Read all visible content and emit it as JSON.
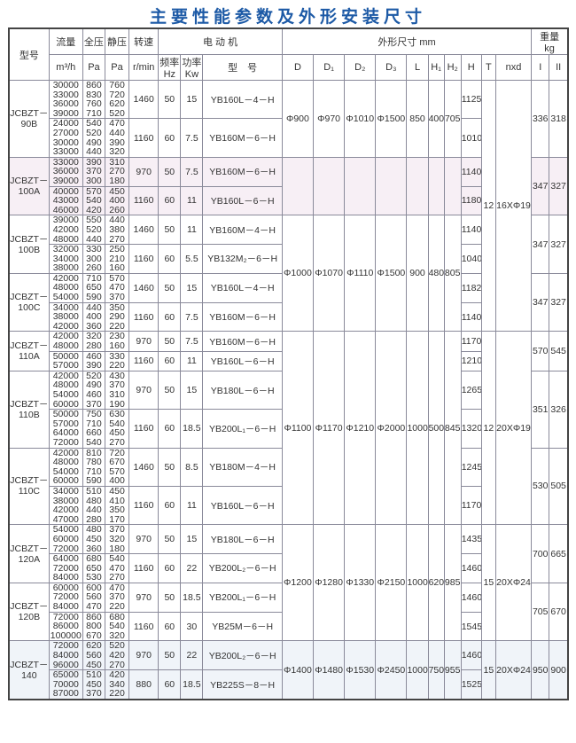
{
  "title": "主要性能参数及外形安装尺寸",
  "header": {
    "model": "型号",
    "flow": "流量",
    "flow_unit": "m³/h",
    "total_pressure": "全压",
    "total_pressure_unit": "Pa",
    "static_pressure": "静压",
    "static_pressure_unit": "Pa",
    "speed": "转速",
    "speed_unit": "r/min",
    "motor": "电 动 机",
    "freq": "频率",
    "freq_unit": "Hz",
    "power": "功率",
    "power_unit": "Kw",
    "motor_model": "型　号",
    "dims": "外形尺寸 mm",
    "dim_cols": [
      "D",
      "D₁",
      "D₂",
      "D₃",
      "L",
      "H₁",
      "H₂",
      "H",
      "T",
      "nxd"
    ],
    "weight": "重量",
    "weight_unit": "kg",
    "weight_cols": [
      "I",
      "II"
    ]
  },
  "models": [
    {
      "name": "JCBZT－90B",
      "weight": [
        "336",
        "318"
      ],
      "subs": [
        {
          "rows": [
            [
              "30000",
              "860",
              "760"
            ],
            [
              "33000",
              "830",
              "720"
            ],
            [
              "36000",
              "760",
              "620"
            ],
            [
              "39000",
              "710",
              "520"
            ]
          ],
          "rpm": "1460",
          "hz": "50",
          "kw": "15",
          "motor": "YB160L－4－H",
          "H": "1125"
        },
        {
          "rows": [
            [
              "24000",
              "540",
              "470"
            ],
            [
              "27000",
              "520",
              "440"
            ],
            [
              "30000",
              "490",
              "390"
            ],
            [
              "33000",
              "440",
              "320"
            ]
          ],
          "rpm": "1160",
          "hz": "60",
          "kw": "7.5",
          "motor": "YB160M－6－H",
          "H": "1010"
        }
      ]
    },
    {
      "name": "JCBZT－100A",
      "weight": [
        "347",
        "327"
      ],
      "subs": [
        {
          "rows": [
            [
              "33000",
              "390",
              "310"
            ],
            [
              "36000",
              "370",
              "270"
            ],
            [
              "39000",
              "300",
              "180"
            ]
          ],
          "rpm": "970",
          "hz": "50",
          "kw": "7.5",
          "motor": "YB160M－6－H",
          "H": "1140"
        },
        {
          "rows": [
            [
              "40000",
              "570",
              "450"
            ],
            [
              "43000",
              "540",
              "400"
            ],
            [
              "46000",
              "420",
              "260"
            ]
          ],
          "rpm": "1160",
          "hz": "60",
          "kw": "11",
          "motor": "YB160L－6－H",
          "H": "1180"
        }
      ]
    },
    {
      "name": "JCBZT－100B",
      "weight": [
        "347",
        "327"
      ],
      "subs": [
        {
          "rows": [
            [
              "39000",
              "550",
              "440"
            ],
            [
              "42000",
              "520",
              "380"
            ],
            [
              "48000",
              "440",
              "270"
            ]
          ],
          "rpm": "1460",
          "hz": "50",
          "kw": "11",
          "motor": "YB160M－4－H",
          "H": "1140"
        },
        {
          "rows": [
            [
              "32000",
              "330",
              "250"
            ],
            [
              "34000",
              "300",
              "210"
            ],
            [
              "38000",
              "260",
              "160"
            ]
          ],
          "rpm": "1160",
          "hz": "60",
          "kw": "5.5",
          "motor": "YB132M₂－6－H",
          "H": "1040"
        }
      ]
    },
    {
      "name": "JCBZT－100C",
      "weight": [
        "347",
        "327"
      ],
      "subs": [
        {
          "rows": [
            [
              "42000",
              "710",
              "570"
            ],
            [
              "48000",
              "650",
              "470"
            ],
            [
              "54000",
              "590",
              "370"
            ]
          ],
          "rpm": "1460",
          "hz": "50",
          "kw": "15",
          "motor": "YB160L－4－H",
          "H": "1182"
        },
        {
          "rows": [
            [
              "34000",
              "440",
              "350"
            ],
            [
              "38000",
              "400",
              "290"
            ],
            [
              "42000",
              "360",
              "220"
            ]
          ],
          "rpm": "1160",
          "hz": "60",
          "kw": "7.5",
          "motor": "YB160M－6－H",
          "H": "1140"
        }
      ]
    },
    {
      "name": "JCBZT－110A",
      "weight": [
        "570",
        "545"
      ],
      "subs": [
        {
          "rows": [
            [
              "42000",
              "320",
              "230"
            ],
            [
              "48000",
              "280",
              "160"
            ]
          ],
          "rpm": "970",
          "hz": "50",
          "kw": "7.5",
          "motor": "YB160M－6－H",
          "H": "1170"
        },
        {
          "rows": [
            [
              "50000",
              "460",
              "330"
            ],
            [
              "57000",
              "390",
              "220"
            ]
          ],
          "rpm": "1160",
          "hz": "60",
          "kw": "11",
          "motor": "YB160L－6－H",
          "H": "1210"
        }
      ]
    },
    {
      "name": "JCBZT－110B",
      "weight": [
        "351",
        "326"
      ],
      "subs": [
        {
          "rows": [
            [
              "42000",
              "520",
              "430"
            ],
            [
              "48000",
              "490",
              "370"
            ],
            [
              "54000",
              "460",
              "310"
            ],
            [
              "60000",
              "370",
              "190"
            ]
          ],
          "rpm": "970",
          "hz": "50",
          "kw": "15",
          "motor": "YB180L－6－H",
          "H": "1265"
        },
        {
          "rows": [
            [
              "50000",
              "750",
              "630"
            ],
            [
              "57000",
              "710",
              "540"
            ],
            [
              "64000",
              "660",
              "450"
            ],
            [
              "72000",
              "540",
              "270"
            ]
          ],
          "rpm": "1160",
          "hz": "60",
          "kw": "18.5",
          "motor": "YB200L₁－6－H",
          "H": "1320"
        }
      ]
    },
    {
      "name": "JCBZT－110C",
      "weight": [
        "530",
        "505"
      ],
      "subs": [
        {
          "rows": [
            [
              "42000",
              "810",
              "720"
            ],
            [
              "48000",
              "780",
              "670"
            ],
            [
              "54000",
              "710",
              "570"
            ],
            [
              "60000",
              "590",
              "400"
            ]
          ],
          "rpm": "1460",
          "hz": "50",
          "kw": "8.5",
          "motor": "YB180M－4－H",
          "H": "1245"
        },
        {
          "rows": [
            [
              "34000",
              "510",
              "450"
            ],
            [
              "38000",
              "480",
              "410"
            ],
            [
              "42000",
              "440",
              "350"
            ],
            [
              "47000",
              "280",
              "170"
            ]
          ],
          "rpm": "1160",
          "hz": "60",
          "kw": "11",
          "motor": "YB160L－6－H",
          "H": "1170"
        }
      ]
    },
    {
      "name": "JCBZT－120A",
      "weight": [
        "700",
        "665"
      ],
      "subs": [
        {
          "rows": [
            [
              "54000",
              "480",
              "370"
            ],
            [
              "60000",
              "450",
              "320"
            ],
            [
              "72000",
              "360",
              "180"
            ]
          ],
          "rpm": "970",
          "hz": "50",
          "kw": "15",
          "motor": "YB180L－6－H",
          "H": "1435"
        },
        {
          "rows": [
            [
              "64000",
              "680",
              "540"
            ],
            [
              "72000",
              "650",
              "470"
            ],
            [
              "84000",
              "530",
              "270"
            ]
          ],
          "rpm": "1160",
          "hz": "60",
          "kw": "22",
          "motor": "YB200L₂－6－H",
          "H": "1460"
        }
      ]
    },
    {
      "name": "JCBZT－120B",
      "weight": [
        "705",
        "670"
      ],
      "subs": [
        {
          "rows": [
            [
              "60000",
              "600",
              "470"
            ],
            [
              "72000",
              "560",
              "370"
            ],
            [
              "84000",
              "470",
              "220"
            ]
          ],
          "rpm": "970",
          "hz": "50",
          "kw": "18.5",
          "motor": "YB200L₁－6－H",
          "H": "1460"
        },
        {
          "rows": [
            [
              "72000",
              "860",
              "680"
            ],
            [
              "86000",
              "800",
              "540"
            ],
            [
              "100000",
              "670",
              "320"
            ]
          ],
          "rpm": "1160",
          "hz": "60",
          "kw": "30",
          "motor": "YB25M－6－H",
          "H": "1545"
        }
      ]
    },
    {
      "name": "JCBZT－140",
      "weight": [
        "950",
        "900"
      ],
      "subs": [
        {
          "rows": [
            [
              "72000",
              "620",
              "520"
            ],
            [
              "84000",
              "560",
              "420"
            ],
            [
              "96000",
              "450",
              "270"
            ]
          ],
          "rpm": "970",
          "hz": "50",
          "kw": "22",
          "motor": "YB200L₂－6－H",
          "H": "1460"
        },
        {
          "rows": [
            [
              "65000",
              "510",
              "420"
            ],
            [
              "70000",
              "450",
              "340"
            ],
            [
              "87000",
              "370",
              "220"
            ]
          ],
          "rpm": "880",
          "hz": "60",
          "kw": "18.5",
          "motor": "YB225S－8－H",
          "H": "1525"
        }
      ]
    }
  ],
  "dim_groups": [
    {
      "models": [
        0
      ],
      "values": [
        "Φ900",
        "Φ970",
        "Φ1010",
        "Φ1500",
        "850",
        "400",
        "705"
      ]
    },
    {
      "models": [
        1
      ],
      "values": [
        "",
        "",
        "",
        "",
        "",
        "",
        ""
      ]
    },
    {
      "models": [
        2,
        3
      ],
      "values": [
        "Φ1000",
        "Φ1070",
        "Φ1110",
        "Φ1500",
        "900",
        "480",
        "805"
      ]
    },
    {
      "models": [
        4,
        5,
        6
      ],
      "values": [
        "Φ1100",
        "Φ1170",
        "Φ1210",
        "Φ2000",
        "1000",
        "500",
        "845"
      ]
    },
    {
      "models": [
        7,
        8
      ],
      "values": [
        "Φ1200",
        "Φ1280",
        "Φ1330",
        "Φ2150",
        "1000",
        "620",
        "985"
      ]
    },
    {
      "models": [
        9
      ],
      "values": [
        "Φ1400",
        "Φ1480",
        "Φ1530",
        "Φ2450",
        "1000",
        "750",
        "955"
      ]
    }
  ],
  "mount_groups": [
    {
      "models": [
        0,
        1,
        2,
        3
      ],
      "T": "12",
      "nxd": "16XΦ19"
    },
    {
      "models": [
        4,
        5,
        6
      ],
      "T": "12",
      "nxd": "20XΦ19"
    },
    {
      "models": [
        7,
        8
      ],
      "T": "15",
      "nxd": "20XΦ24"
    },
    {
      "models": [
        9
      ],
      "T": "15",
      "nxd": "20XΦ24"
    }
  ]
}
